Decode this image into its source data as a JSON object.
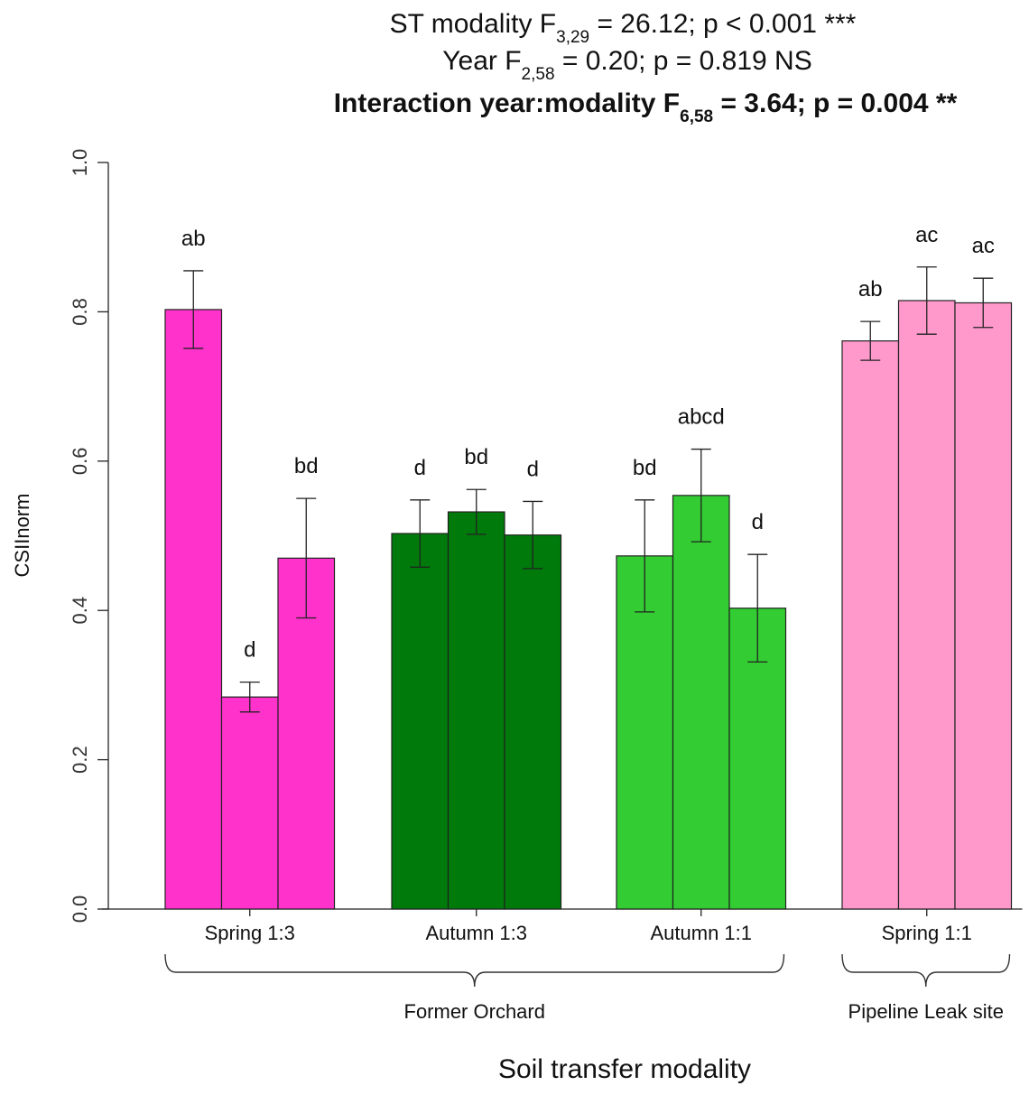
{
  "chart_data": {
    "type": "bar",
    "stats": [
      {
        "pre": "ST modality F",
        "sub": "3,29",
        "post": " = 26.12; p < 0.001 ***",
        "bold": false
      },
      {
        "pre": "Year F",
        "sub": "2,58",
        "post": " = 0.20; p = 0.819 NS",
        "bold": false
      },
      {
        "pre": "Interaction year:modality F",
        "sub": "6,58",
        "post": " = 3.64; p = 0.004 **",
        "bold": true
      }
    ],
    "ylabel": "CSIInorm",
    "xlabel": "Soil transfer modality",
    "ylim": [
      0,
      1.0
    ],
    "yticks": [
      "0.0",
      "0.2",
      "0.4",
      "0.6",
      "0.8",
      "1.0"
    ],
    "categories": [
      "Spring 1:3",
      "Autumn 1:3",
      "Autumn 1:1",
      "Spring 1:1"
    ],
    "groups": [
      {
        "label": "Former Orchard",
        "categories": [
          "Spring 1:3",
          "Autumn 1:3",
          "Autumn 1:1"
        ]
      },
      {
        "label": "Pipeline Leak site",
        "categories": [
          "Spring 1:1"
        ]
      }
    ],
    "colors": [
      "#ff33cc",
      "#007a0a",
      "#33cc33",
      "#ff99cc"
    ],
    "bars": [
      {
        "values": [
          0.803,
          0.284,
          0.47
        ],
        "errors": [
          0.052,
          0.02,
          0.08
        ],
        "letters": [
          "ab",
          "d",
          "bd"
        ]
      },
      {
        "values": [
          0.503,
          0.532,
          0.501
        ],
        "errors": [
          0.045,
          0.03,
          0.045
        ],
        "letters": [
          "d",
          "bd",
          "d"
        ]
      },
      {
        "values": [
          0.473,
          0.554,
          0.403
        ],
        "errors": [
          0.075,
          0.062,
          0.072
        ],
        "letters": [
          "bd",
          "abcd",
          "d"
        ]
      },
      {
        "values": [
          0.761,
          0.815,
          0.812
        ],
        "errors": [
          0.026,
          0.045,
          0.033
        ],
        "letters": [
          "ab",
          "ac",
          "ac"
        ]
      }
    ]
  }
}
